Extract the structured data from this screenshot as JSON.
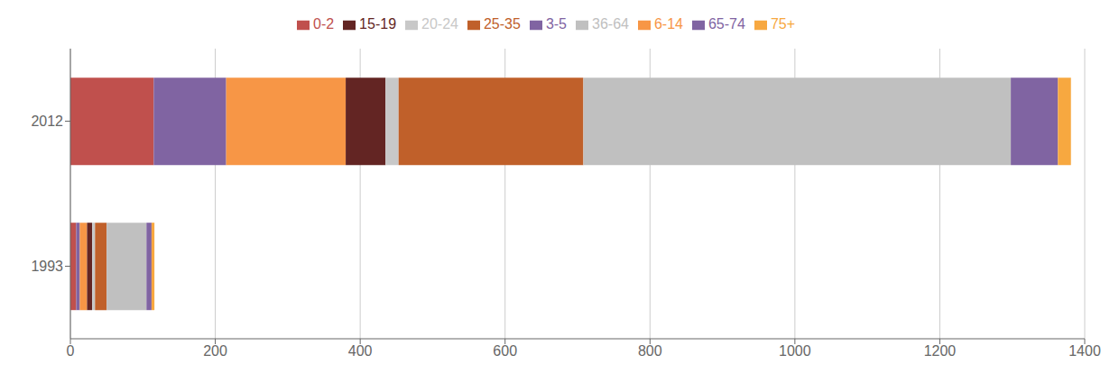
{
  "chart_data": {
    "type": "bar",
    "orientation": "horizontal",
    "stacked": true,
    "categories": [
      "1993",
      "2012"
    ],
    "series": [
      {
        "name": "0-2",
        "color": "#c0504d",
        "values": [
          8,
          115
        ]
      },
      {
        "name": "3-5",
        "color": "#8064a2",
        "values": [
          5,
          100
        ]
      },
      {
        "name": "6-14",
        "color": "#f79646",
        "values": [
          10,
          165
        ]
      },
      {
        "name": "15-19",
        "color": "#632523",
        "values": [
          7,
          55
        ]
      },
      {
        "name": "20-24",
        "color": "#c8c8c8",
        "values": [
          4,
          18
        ]
      },
      {
        "name": "25-35",
        "color": "#c0602a",
        "values": [
          16,
          255
        ]
      },
      {
        "name": "36-64",
        "color": "#c0c0c0",
        "values": [
          55,
          590
        ]
      },
      {
        "name": "65-74",
        "color": "#8064a2",
        "values": [
          7,
          65
        ]
      },
      {
        "name": "75+",
        "color": "#f7a840",
        "values": [
          4,
          18
        ]
      }
    ],
    "xlim": [
      0,
      1400
    ],
    "xticks": [
      0,
      200,
      400,
      600,
      800,
      1000,
      1200,
      1400
    ],
    "grid": true,
    "legend": "top"
  }
}
